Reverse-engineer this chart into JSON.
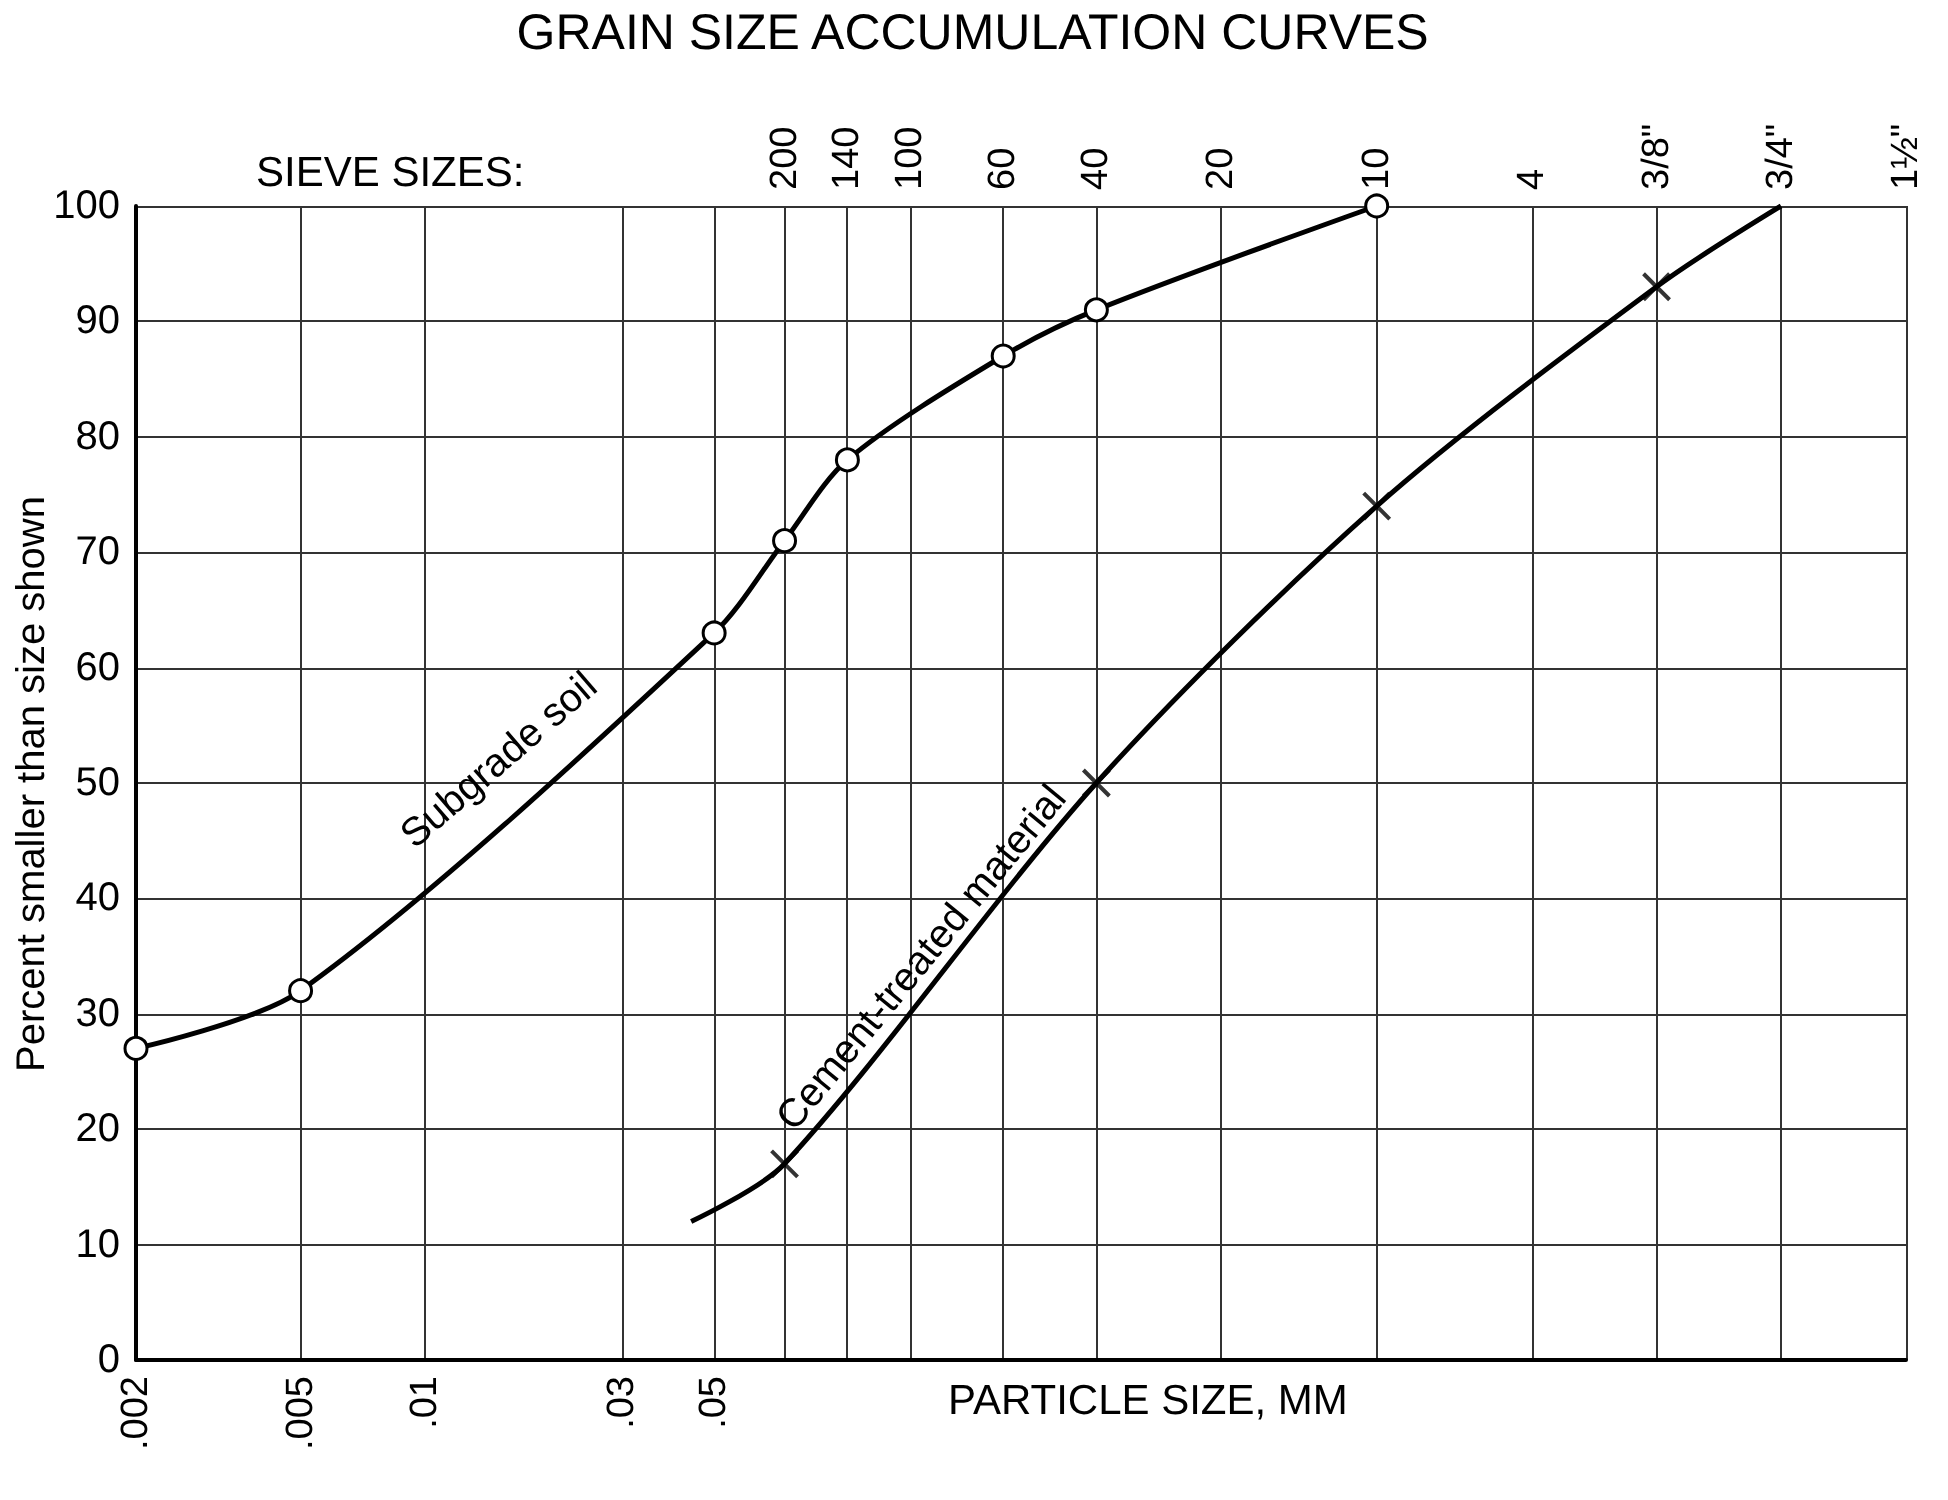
{
  "chart_data": {
    "type": "line",
    "title": "GRAIN SIZE ACCUMULATION CURVES",
    "xlabel": "PARTICLE SIZE, MM",
    "ylabel": "Percent smaller than size shown",
    "annotations": [
      "SIEVE SIZES:",
      "200",
      "140",
      "100",
      "60",
      "40",
      "20",
      "10",
      "4",
      "3/8\"",
      "3/4\"",
      "1½\""
    ],
    "log": "x",
    "xlim": [
      0.002,
      38.1
    ],
    "xticks": [
      {
        "value": 0.002,
        "label": ".002"
      },
      {
        "value": 0.005,
        "label": ".005"
      },
      {
        "value": 0.01,
        "label": ".01"
      },
      {
        "value": 0.03,
        "label": ".03"
      },
      {
        "value": 0.05,
        "label": ".05"
      },
      {
        "value": 0.074,
        "label": null
      },
      {
        "value": 0.105,
        "label": null
      },
      {
        "value": 0.149,
        "label": null
      },
      {
        "value": 0.25,
        "label": null
      },
      {
        "value": 0.42,
        "label": null
      },
      {
        "value": 0.84,
        "label": null
      },
      {
        "value": 2.0,
        "label": null
      },
      {
        "value": 4.76,
        "label": null
      },
      {
        "value": 9.5,
        "label": null
      },
      {
        "value": 19.0,
        "label": null
      },
      {
        "value": 38.1,
        "label": null
      }
    ],
    "ylim": [
      0,
      100
    ],
    "yticks": [
      0,
      10,
      20,
      30,
      40,
      50,
      60,
      70,
      80,
      90,
      100
    ],
    "grid": true,
    "legend": false,
    "series": [
      {
        "name": "Subgrade soil",
        "color": "#000000",
        "marker": "circle",
        "x": [
          0.002,
          0.005,
          0.05,
          0.074,
          0.105,
          0.25,
          0.42,
          2.0
        ],
        "values": [
          27,
          32,
          63,
          71,
          78,
          87,
          91,
          100
        ]
      },
      {
        "name": "Cement-treated material",
        "color": "#000000",
        "marker": "none",
        "x": [
          0.044,
          0.074,
          0.42,
          2.0,
          9.5,
          19.0
        ],
        "values": [
          12,
          17,
          50,
          74,
          93,
          100
        ]
      },
      {
        "type": "scatter",
        "color": "#000000",
        "marker": "cross",
        "x": [
          0.074,
          0.42,
          2.0,
          9.5
        ],
        "values": [
          17,
          50,
          74,
          93
        ]
      }
    ]
  }
}
